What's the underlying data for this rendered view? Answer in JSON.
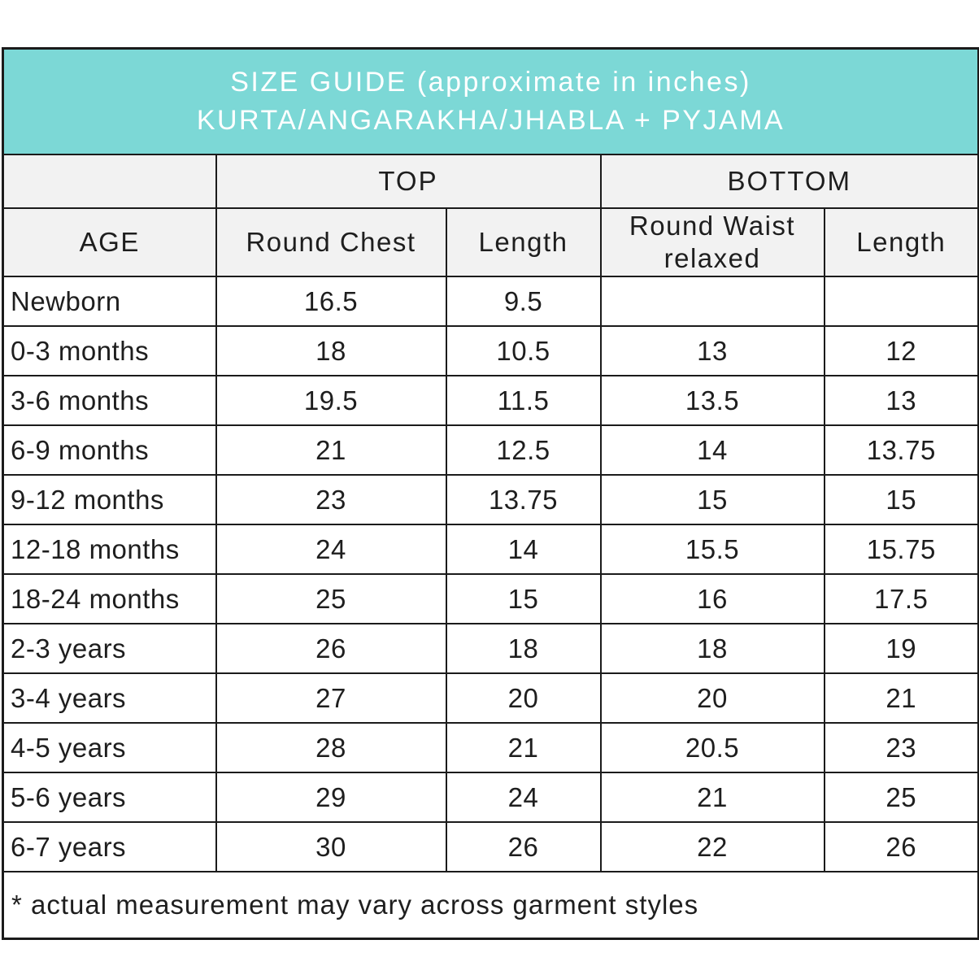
{
  "colors": {
    "accent_teal": "#7cd8d6",
    "header_gray": "#f2f2f2",
    "border_dark": "#1b1b1b",
    "text_dark": "#1e1e1e",
    "title_text": "#ffffff"
  },
  "title": {
    "line1": "SIZE GUIDE (approximate in inches)",
    "line2": "KURTA/ANGARAKHA/JHABLA + PYJAMA"
  },
  "table": {
    "group_headers": {
      "top": "TOP",
      "bottom": "BOTTOM"
    },
    "column_headers": {
      "age": "AGE",
      "round_chest": "Round Chest",
      "top_length": "Length",
      "round_waist": "Round Waist relaxed",
      "bottom_length": "Length"
    },
    "rows": [
      {
        "cells": [
          "Newborn",
          "16.5",
          "9.5",
          "",
          ""
        ]
      },
      {
        "cells": [
          "0-3 months",
          "18",
          "10.5",
          "13",
          "12"
        ]
      },
      {
        "cells": [
          "3-6 months",
          "19.5",
          "11.5",
          "13.5",
          "13"
        ]
      },
      {
        "cells": [
          "6-9 months",
          "21",
          "12.5",
          "14",
          "13.75"
        ]
      },
      {
        "cells": [
          "9-12 months",
          "23",
          "13.75",
          "15",
          "15"
        ]
      },
      {
        "cells": [
          "12-18 months",
          "24",
          "14",
          "15.5",
          "15.75"
        ]
      },
      {
        "cells": [
          "18-24 months",
          "25",
          "15",
          "16",
          "17.5"
        ]
      },
      {
        "cells": [
          "2-3 years",
          "26",
          "18",
          "18",
          "19"
        ]
      },
      {
        "cells": [
          "3-4 years",
          "27",
          "20",
          "20",
          "21"
        ]
      },
      {
        "cells": [
          "4-5 years",
          "28",
          "21",
          "20.5",
          "23"
        ]
      },
      {
        "cells": [
          "5-6 years",
          "29",
          "24",
          "21",
          "25"
        ]
      },
      {
        "cells": [
          "6-7 years",
          "30",
          "26",
          "22",
          "26"
        ]
      }
    ],
    "footnote": "* actual measurement may vary across garment styles"
  }
}
